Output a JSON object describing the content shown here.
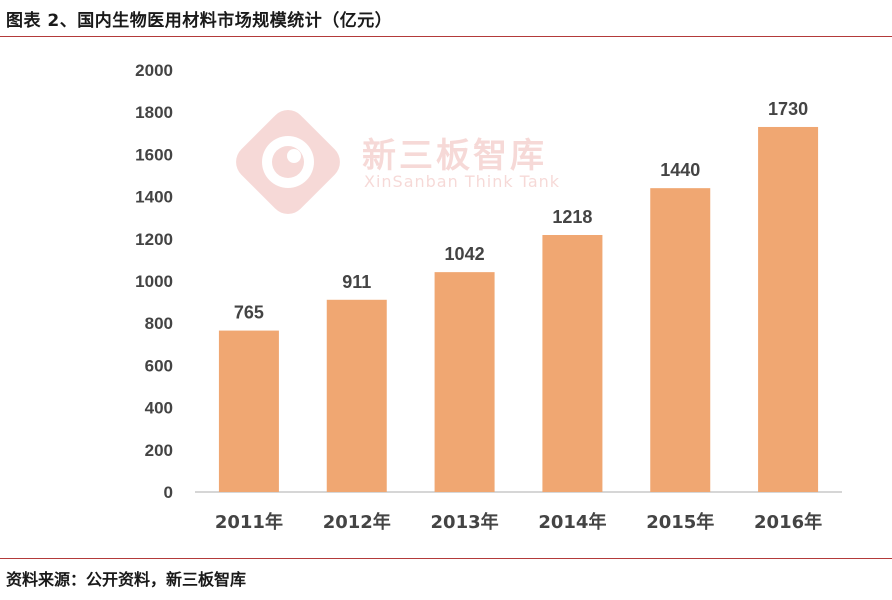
{
  "header": {
    "title": "图表 2、国内生物医用材料市场规模统计（亿元）"
  },
  "footer": {
    "source": "资料来源：公开资料，新三板智库"
  },
  "watermark": {
    "name_cn": "新三板智库",
    "name_en": "XinSanban Think Tank"
  },
  "colors": {
    "bar": "#F0A772",
    "axis": "#c8c8c8",
    "rule": "#b33a3a",
    "text": "#444444"
  },
  "chart_data": {
    "type": "bar",
    "categories": [
      "2011年",
      "2012年",
      "2013年",
      "2014年",
      "2015年",
      "2016年"
    ],
    "values": [
      765,
      911,
      1042,
      1218,
      1440,
      1730
    ],
    "data_labels": [
      "765",
      "911",
      "1042",
      "1218",
      "1440",
      "1730"
    ],
    "ylim": [
      0,
      2000
    ],
    "yticks": [
      0,
      200,
      400,
      600,
      800,
      1000,
      1200,
      1400,
      1600,
      1800,
      2000
    ],
    "ytick_labels": [
      "0",
      "200",
      "400",
      "600",
      "800",
      "1000",
      "1200",
      "1400",
      "1600",
      "1800",
      "2000"
    ],
    "grid": false,
    "legend": "none"
  }
}
